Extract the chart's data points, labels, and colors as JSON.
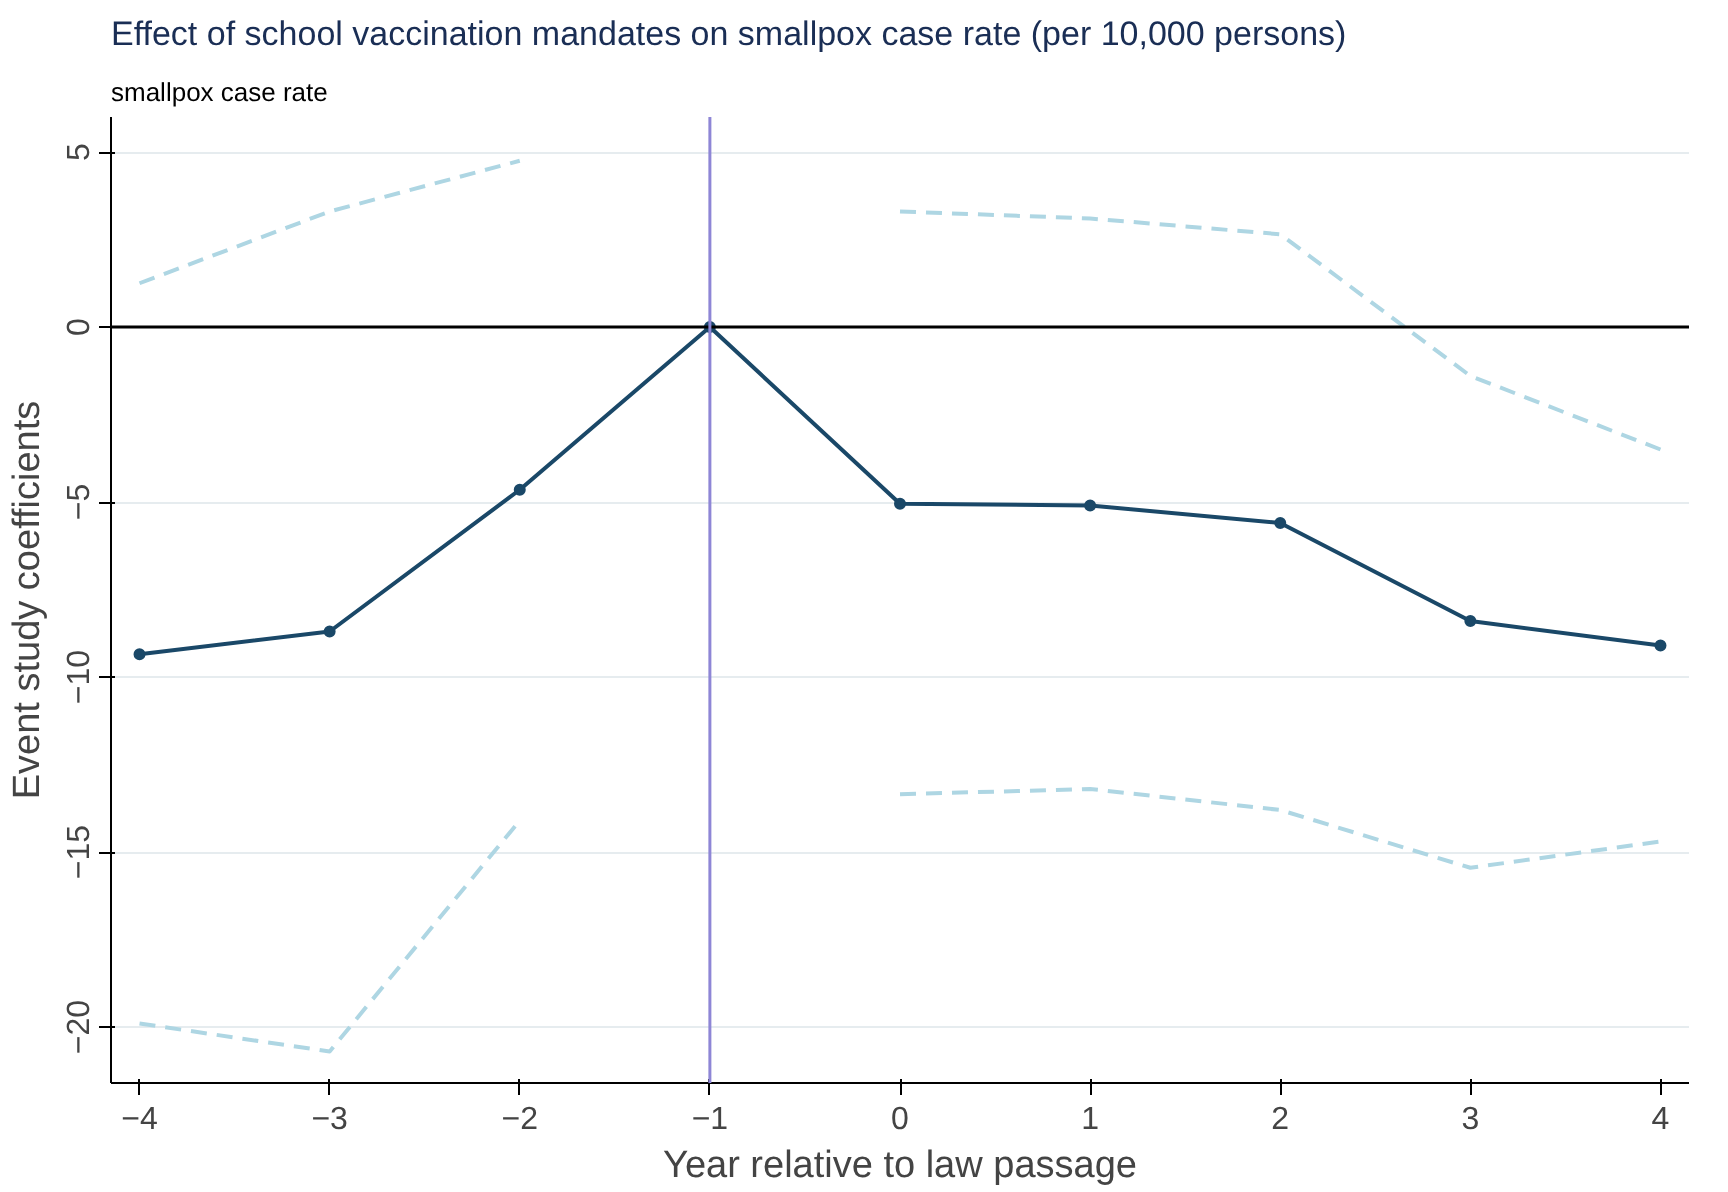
{
  "chart_data": {
    "type": "line",
    "title": "Effect of school vaccination mandates on smallpox case rate (per 10,000 persons)",
    "subtitle": "smallpox case rate",
    "xlabel": "Year relative to law passage",
    "ylabel": "Event study coefficients",
    "x": [
      -4,
      -3,
      -2,
      -1,
      0,
      1,
      2,
      3,
      4
    ],
    "series": [
      {
        "color": "#aed6e3",
        "line_style": "dashed",
        "marker": "none",
        "values": [
          1.25,
          3.3,
          4.75,
          null,
          3.3,
          3.1,
          2.65,
          -1.4,
          -3.5
        ]
      },
      {
        "color": "#aed6e3",
        "line_style": "dashed",
        "marker": "none",
        "values": [
          -19.9,
          -20.7,
          -14.1,
          null,
          -13.35,
          -13.2,
          -13.8,
          -15.45,
          -14.7
        ]
      },
      {
        "color": "#1a4868",
        "line_style": "solid",
        "marker": "circle",
        "values": [
          -9.35,
          -8.7,
          -4.65,
          0,
          -5.05,
          -5.1,
          -5.6,
          -8.4,
          -9.1
        ]
      }
    ],
    "xlim": [
      -4.15,
      4.15
    ],
    "ylim": [
      -21.6,
      6
    ],
    "xticks": [
      -4,
      -3,
      -2,
      -1,
      0,
      1,
      2,
      3,
      4
    ],
    "yticks": [
      -20,
      -15,
      -10,
      -5,
      0,
      5
    ],
    "ref_lines": [
      {
        "axis": "y",
        "value": 0,
        "color": "#000000"
      },
      {
        "axis": "x",
        "value": -1,
        "color": "#8e86d6"
      }
    ],
    "grid": "y"
  }
}
